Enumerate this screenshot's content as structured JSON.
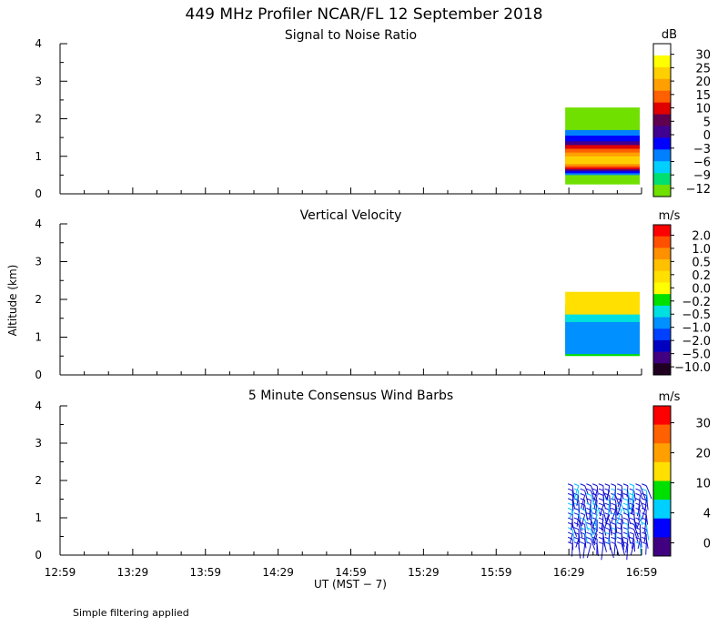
{
  "title": "449 MHz Profiler NCAR/FL 12 September 2018",
  "ylabel": "Altitude (km)",
  "xlabel": "UT  (MST − 7)",
  "footnote": "Simple filtering applied",
  "chart_data": [
    {
      "type": "heatmap",
      "title": "Signal to Noise Ratio",
      "x_ticks": [
        "12:59",
        "13:29",
        "13:59",
        "14:29",
        "14:59",
        "15:29",
        "15:59",
        "16:29",
        "16:59"
      ],
      "y_ticks": [
        "0",
        "1",
        "2",
        "3",
        "4"
      ],
      "ylim": [
        0,
        4
      ],
      "colorbar": {
        "unit": "dB",
        "labels": [
          "30",
          "25",
          "20",
          "15",
          "10",
          "5",
          "0",
          "−3",
          "−6",
          "−9",
          "−12"
        ],
        "colors": [
          "#ffffff",
          "#ffff00",
          "#ffd000",
          "#ffa000",
          "#ff6000",
          "#e00000",
          "#600050",
          "#400090",
          "#0000ff",
          "#0080ff",
          "#00d0ff",
          "#00e070",
          "#70e000"
        ]
      },
      "data_window": {
        "x_start": "16:29",
        "x_end": "16:59",
        "altitude_km": [
          0.25,
          2.4
        ]
      },
      "layers": [
        {
          "altitude_km": [
            0.25,
            2.3
          ],
          "color": "#70e000"
        },
        {
          "altitude_km": [
            0.5,
            1.7
          ],
          "color": "#0080ff"
        },
        {
          "altitude_km": [
            0.55,
            1.55
          ],
          "color": "#0000ff"
        },
        {
          "altitude_km": [
            0.6,
            1.4
          ],
          "color": "#400090"
        },
        {
          "altitude_km": [
            0.65,
            1.3
          ],
          "color": "#e00000"
        },
        {
          "altitude_km": [
            0.7,
            1.2
          ],
          "color": "#ff6000"
        },
        {
          "altitude_km": [
            0.75,
            1.1
          ],
          "color": "#ffa000"
        },
        {
          "altitude_km": [
            0.8,
            1.0
          ],
          "color": "#ffd000"
        }
      ]
    },
    {
      "type": "heatmap",
      "title": "Vertical Velocity",
      "x_ticks": [
        "12:59",
        "13:29",
        "13:59",
        "14:29",
        "14:59",
        "15:29",
        "15:59",
        "16:29",
        "16:59"
      ],
      "y_ticks": [
        "0",
        "1",
        "2",
        "3",
        "4"
      ],
      "ylim": [
        0,
        4
      ],
      "colorbar": {
        "unit": "m/s",
        "labels": [
          "2.0",
          "1.0",
          "0.5",
          "0.2",
          "0.0",
          "−0.2",
          "−0.5",
          "−1.0",
          "−2.0",
          "−5.0",
          "−10.0"
        ],
        "colors": [
          "#ff0000",
          "#ff5000",
          "#ff9000",
          "#ffc000",
          "#ffe000",
          "#ffff00",
          "#00e000",
          "#00e0e0",
          "#0090ff",
          "#0040ff",
          "#0000c0",
          "#400080",
          "#200020"
        ]
      },
      "data_window": {
        "x_start": "16:29",
        "x_end": "16:59",
        "altitude_km": [
          0.5,
          2.2
        ]
      },
      "layers": [
        {
          "altitude_km": [
            0.5,
            1.85
          ],
          "color": "#00e000"
        },
        {
          "altitude_km": [
            0.55,
            1.4
          ],
          "color": "#0090ff"
        },
        {
          "altitude_km": [
            1.4,
            1.8
          ],
          "color": "#00e0e0"
        },
        {
          "altitude_km": [
            1.6,
            2.2
          ],
          "color": "#ffe000"
        }
      ]
    },
    {
      "type": "scatter",
      "title": "5 Minute Consensus Wind Barbs",
      "x_ticks": [
        "12:59",
        "13:29",
        "13:59",
        "14:29",
        "14:59",
        "15:29",
        "15:59",
        "16:29",
        "16:59"
      ],
      "y_ticks": [
        "0",
        "1",
        "2",
        "3",
        "4"
      ],
      "ylim": [
        0,
        4
      ],
      "colorbar": {
        "unit": "m/s",
        "labels": [
          "30",
          "20",
          "10",
          "4",
          "0"
        ],
        "colors": [
          "#ff0000",
          "#ff6000",
          "#ffa000",
          "#ffe000",
          "#00e000",
          "#00d0ff",
          "#0000ff",
          "#400080"
        ]
      },
      "data_window": {
        "x_start": "16:29",
        "x_end": "16:59",
        "altitude_km": [
          0.3,
          1.9
        ]
      },
      "barbs_note": "dense wind barbs, mostly blue (0-4 m/s) with some light blue (4-10 m/s)"
    }
  ]
}
